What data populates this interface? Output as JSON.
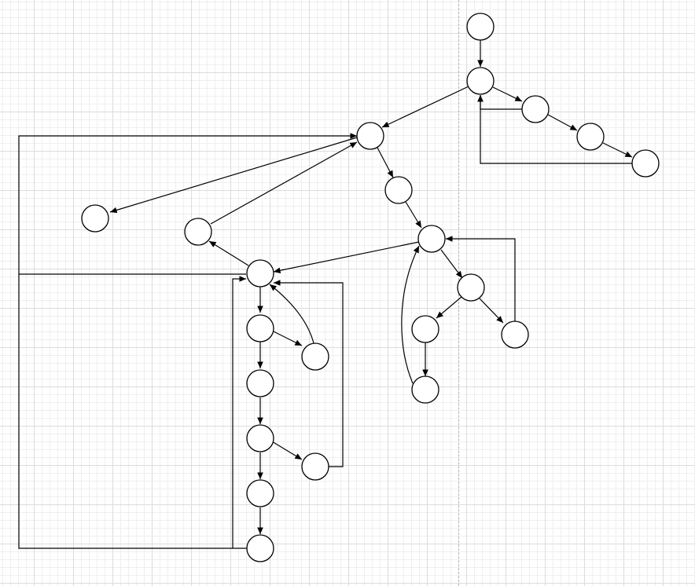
{
  "diagram": {
    "type": "directed-graph",
    "colors": {
      "stroke": "#000000",
      "node_fill": "#ffffff",
      "grid_major": "#dcdcdc",
      "grid_minor": "#efefef",
      "page_guide": "#b4b4b4"
    },
    "nodes": [
      "n1",
      "n2",
      "n3",
      "n4",
      "n5",
      "n6",
      "n7",
      "n8",
      "n9",
      "n10",
      "n11",
      "n12",
      "n13",
      "n14",
      "n15",
      "n16",
      "n17",
      "n18",
      "n19",
      "n20",
      "n21",
      "n22",
      "n23",
      "n24"
    ],
    "edges": [
      {
        "from": "n1",
        "to": "n2"
      },
      {
        "from": "n2",
        "to": "n3"
      },
      {
        "from": "n3",
        "to": "n4"
      },
      {
        "from": "n4",
        "to": "n5"
      },
      {
        "from": "n3",
        "to": "n2"
      },
      {
        "from": "n5",
        "to": "n2"
      },
      {
        "from": "n2",
        "to": "n6"
      },
      {
        "from": "n6",
        "to": "n7"
      },
      {
        "from": "n6",
        "to": "n8"
      },
      {
        "from": "n7",
        "to": "n9"
      },
      {
        "from": "n9",
        "to": "n10"
      },
      {
        "from": "n9",
        "to": "n11"
      },
      {
        "from": "n11",
        "to": "n12"
      },
      {
        "from": "n11",
        "to": "n13"
      },
      {
        "from": "n12",
        "to": "n14"
      },
      {
        "from": "n14",
        "to": "n10"
      },
      {
        "from": "n13",
        "to": "n10"
      },
      {
        "from": "n11",
        "to": "n10"
      },
      {
        "from": "n10",
        "to": "n15"
      },
      {
        "from": "n15",
        "to": "n6"
      },
      {
        "from": "n11",
        "to": "n16"
      },
      {
        "from": "n16",
        "to": "n17"
      },
      {
        "from": "n16",
        "to": "n18"
      },
      {
        "from": "n18",
        "to": "n16"
      },
      {
        "from": "n17",
        "to": "n19"
      },
      {
        "from": "n19",
        "to": "n20"
      },
      {
        "from": "n20",
        "to": "n21"
      },
      {
        "from": "n20",
        "to": "n22"
      },
      {
        "from": "n21",
        "to": "n16"
      },
      {
        "from": "n22",
        "to": "n23"
      },
      {
        "from": "n23",
        "to": "n24"
      },
      {
        "from": "n24",
        "to": "n16"
      },
      {
        "from": "n16",
        "to": "n6"
      }
    ]
  }
}
